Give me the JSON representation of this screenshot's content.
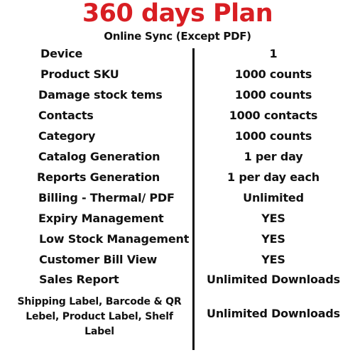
{
  "title": "360 days Plan",
  "subtitle": "Online Sync (Except PDF)",
  "accent_color": "#d81e23",
  "rows": [
    {
      "label": "Device",
      "value": "1"
    },
    {
      "label": "Product SKU",
      "value": "1000 counts"
    },
    {
      "label": "Damage stock tems",
      "value": "1000 counts"
    },
    {
      "label": "Contacts",
      "value": "1000 contacts"
    },
    {
      "label": "Category",
      "value": "1000 counts"
    },
    {
      "label": "Catalog Generation",
      "value": "1 per day"
    },
    {
      "label": "Reports Generation",
      "value": "1 per day each"
    },
    {
      "label": "Billing - Thermal/ PDF",
      "value": "Unlimited"
    },
    {
      "label": "Expiry Management",
      "value": "YES"
    },
    {
      "label": "Low Stock Management",
      "value": "YES"
    },
    {
      "label": "Customer Bill View",
      "value": "YES"
    },
    {
      "label": "Sales Report",
      "value": "Unlimited Downloads"
    },
    {
      "label": "Shipping Label, Barcode & QR Lebel, Product Label, Shelf Label",
      "value": "Unlimited Downloads"
    }
  ]
}
